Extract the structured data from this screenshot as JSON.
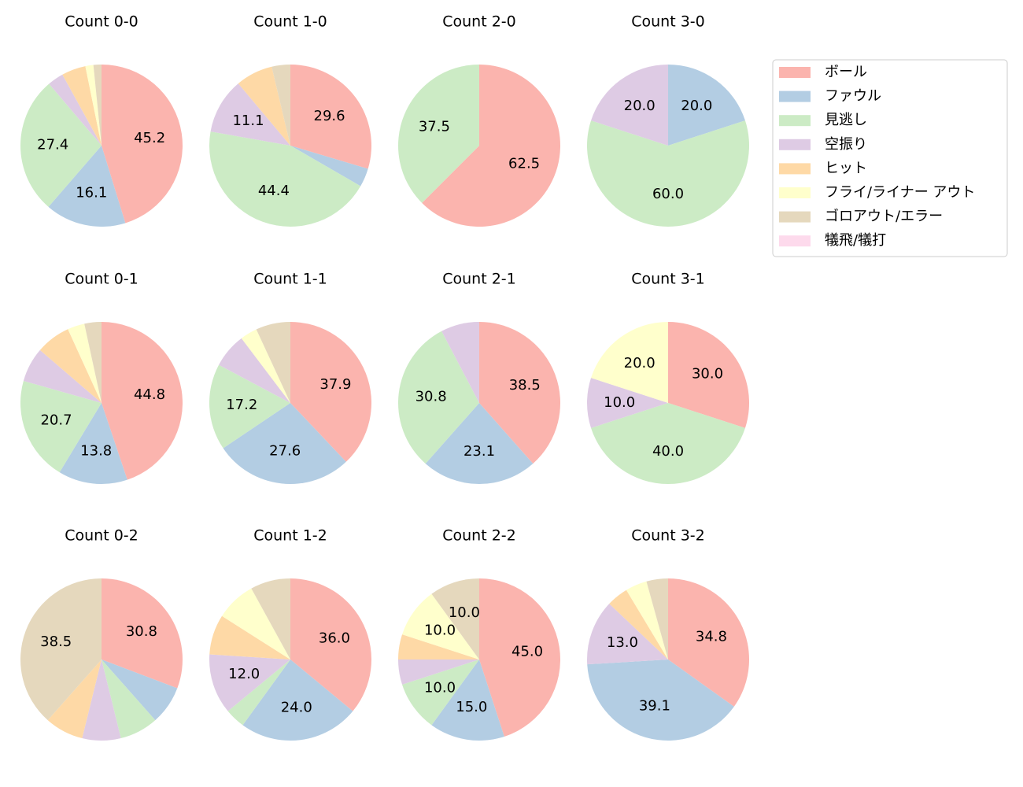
{
  "legend": {
    "labels": [
      "ボール",
      "ファウル",
      "見逃し",
      "空振り",
      "ヒット",
      "フライ/ライナー アウト",
      "ゴロアウト/エラー",
      "犠飛/犠打"
    ],
    "colors": [
      "#fbb4ae",
      "#b3cde3",
      "#ccebc5",
      "#decbe4",
      "#fed9a6",
      "#ffffcc",
      "#e5d8bd",
      "#fddaec"
    ]
  },
  "chart_data": [
    {
      "type": "pie",
      "title": "Count 0-0",
      "values": [
        45.2,
        16.1,
        27.4,
        3.2,
        4.8,
        1.6,
        1.6,
        0
      ],
      "value_labels": [
        "45.2",
        "16.1",
        "27.4",
        null,
        null,
        null,
        null,
        null
      ]
    },
    {
      "type": "pie",
      "title": "Count 1-0",
      "values": [
        29.6,
        3.7,
        44.4,
        11.1,
        7.4,
        0,
        3.7,
        0
      ],
      "value_labels": [
        "29.6",
        null,
        "44.4",
        "11.1",
        null,
        null,
        null,
        null
      ]
    },
    {
      "type": "pie",
      "title": "Count 2-0",
      "values": [
        62.5,
        0,
        37.5,
        0,
        0,
        0,
        0,
        0
      ],
      "value_labels": [
        "62.5",
        null,
        "37.5",
        null,
        null,
        null,
        null,
        null
      ]
    },
    {
      "type": "pie",
      "title": "Count 3-0",
      "values": [
        0,
        20,
        60,
        20,
        0,
        0,
        0,
        0
      ],
      "value_labels": [
        null,
        "20.0",
        "60.0",
        "20.0",
        null,
        null,
        null,
        null
      ]
    },
    {
      "type": "pie",
      "title": "Count 0-1",
      "values": [
        44.8,
        13.8,
        20.7,
        6.9,
        6.9,
        3.4,
        3.4,
        0
      ],
      "value_labels": [
        "44.8",
        "13.8",
        "20.7",
        null,
        null,
        null,
        null,
        null
      ]
    },
    {
      "type": "pie",
      "title": "Count 1-1",
      "values": [
        37.9,
        27.6,
        17.2,
        6.9,
        0,
        3.4,
        6.9,
        0
      ],
      "value_labels": [
        "37.9",
        "27.6",
        "17.2",
        null,
        null,
        null,
        null,
        null
      ]
    },
    {
      "type": "pie",
      "title": "Count 2-1",
      "values": [
        38.5,
        23.1,
        30.8,
        7.7,
        0,
        0,
        0,
        0
      ],
      "value_labels": [
        "38.5",
        "23.1",
        "30.8",
        null,
        null,
        null,
        null,
        null
      ]
    },
    {
      "type": "pie",
      "title": "Count 3-1",
      "values": [
        30,
        0,
        40,
        10,
        0,
        20,
        0,
        0
      ],
      "value_labels": [
        "30.0",
        null,
        "40.0",
        "10.0",
        null,
        "20.0",
        null,
        null
      ]
    },
    {
      "type": "pie",
      "title": "Count 0-2",
      "values": [
        30.8,
        7.7,
        7.7,
        7.7,
        7.7,
        0,
        38.5,
        0
      ],
      "value_labels": [
        "30.8",
        null,
        null,
        null,
        null,
        null,
        "38.5",
        null
      ]
    },
    {
      "type": "pie",
      "title": "Count 1-2",
      "values": [
        36,
        24,
        4,
        12,
        8,
        8,
        8,
        0
      ],
      "value_labels": [
        "36.0",
        "24.0",
        null,
        "12.0",
        null,
        null,
        null,
        null
      ]
    },
    {
      "type": "pie",
      "title": "Count 2-2",
      "values": [
        45,
        15,
        10,
        5,
        5,
        10,
        10,
        0
      ],
      "value_labels": [
        "45.0",
        "15.0",
        "10.0",
        null,
        null,
        "10.0",
        "10.0",
        null
      ]
    },
    {
      "type": "pie",
      "title": "Count 3-2",
      "values": [
        34.8,
        39.1,
        0,
        13.0,
        4.3,
        4.3,
        4.3,
        0
      ],
      "value_labels": [
        "34.8",
        "39.1",
        null,
        "13.0",
        null,
        null,
        null,
        null
      ]
    }
  ]
}
